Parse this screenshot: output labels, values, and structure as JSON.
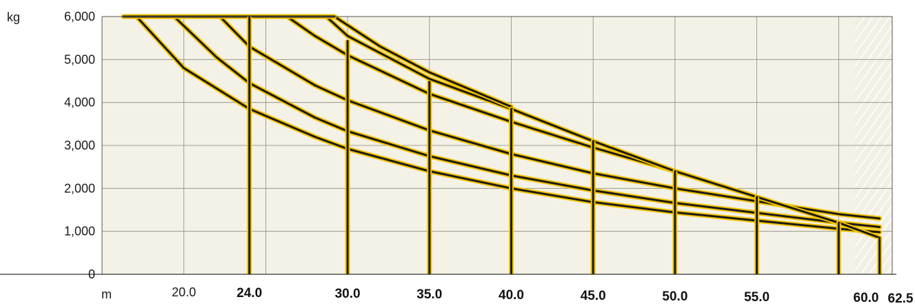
{
  "chart_data": {
    "type": "line",
    "y_unit": "kg",
    "x_unit": "m",
    "ylim": [
      0,
      6000
    ],
    "xlim": [
      15,
      63.5
    ],
    "grid": true,
    "y_ticks": [
      {
        "value": 6000,
        "label": "6,000"
      },
      {
        "value": 5000,
        "label": "5,000"
      },
      {
        "value": 4000,
        "label": "4,000"
      },
      {
        "value": 3000,
        "label": "3,000"
      },
      {
        "value": 2000,
        "label": "2,000"
      },
      {
        "value": 1000,
        "label": "1,000"
      },
      {
        "value": 0,
        "label": "0"
      }
    ],
    "x_ticks": [
      {
        "value": 20,
        "label": "20.0",
        "bold": false
      },
      {
        "value": 24,
        "label": "24.0",
        "bold": true
      },
      {
        "value": 30,
        "label": "30.0",
        "bold": true
      },
      {
        "value": 35,
        "label": "35.0",
        "bold": true
      },
      {
        "value": 40,
        "label": "40.0",
        "bold": true
      },
      {
        "value": 45,
        "label": "45.0",
        "bold": true
      },
      {
        "value": 50,
        "label": "50.0",
        "bold": true
      },
      {
        "value": 55,
        "label": "55.0",
        "bold": true
      },
      {
        "value": 60,
        "label": "60.0",
        "bold": true
      },
      {
        "value": 62.5,
        "label": "62.5",
        "bold": true
      }
    ],
    "series": [
      {
        "jib_length": 24,
        "x": [
          17.1,
          20,
          22,
          24
        ],
        "y": [
          6000,
          4800,
          4250,
          3850
        ]
      },
      {
        "jib_length": 30,
        "x": [
          19.4,
          22,
          24,
          26,
          28,
          30
        ],
        "y": [
          6000,
          5100,
          4550,
          4100,
          3750,
          3400
        ]
      },
      {
        "jib_length": 35,
        "x": [
          22.2,
          24,
          26,
          28,
          30,
          32,
          35
        ],
        "y": [
          6000,
          5300,
          4800,
          4350,
          4000,
          3700,
          3300
        ]
      },
      {
        "jib_length": 40,
        "x": [
          24.0,
          26,
          28,
          30,
          32,
          35,
          38,
          40
        ],
        "y": [
          6000,
          5500,
          5000,
          4600,
          4250,
          3800,
          3400,
          3200
        ]
      },
      {
        "jib_length": 45,
        "x": [
          26.0,
          28,
          30,
          32,
          35,
          38,
          40,
          42,
          45
        ],
        "y": [
          6000,
          5500,
          5000,
          4700,
          4200,
          3800,
          3550,
          3300,
          3000
        ]
      },
      {
        "jib_length": 50,
        "x": [
          28.7,
          30,
          32,
          35,
          38,
          40,
          42,
          45,
          48,
          50
        ],
        "y": [
          6000,
          5450,
          5050,
          4500,
          4050,
          3800,
          3550,
          3200,
          2900,
          2700
        ]
      },
      {
        "jib_length": 55,
        "x": [
          29.0,
          30,
          32,
          35,
          38,
          40
        ],
        "y": [
          6000,
          5750,
          5200,
          4600,
          4100,
          3850
        ]
      }
    ],
    "series_detail": [
      {
        "jib_length": 24,
        "x": [
          17.1,
          18,
          20,
          22,
          24,
          26,
          28,
          30,
          32,
          35,
          38,
          40,
          42,
          45,
          48,
          50,
          52,
          55,
          58,
          60,
          62.5
        ],
        "y": [
          6000,
          5550,
          4800,
          4250,
          3850,
          3500,
          3180,
          2920,
          2700,
          2400,
          2160,
          2020,
          1890,
          1730,
          1600,
          1510,
          1440,
          1340,
          1250,
          1200,
          1130
        ],
        "end_x": 24
      }
    ]
  }
}
